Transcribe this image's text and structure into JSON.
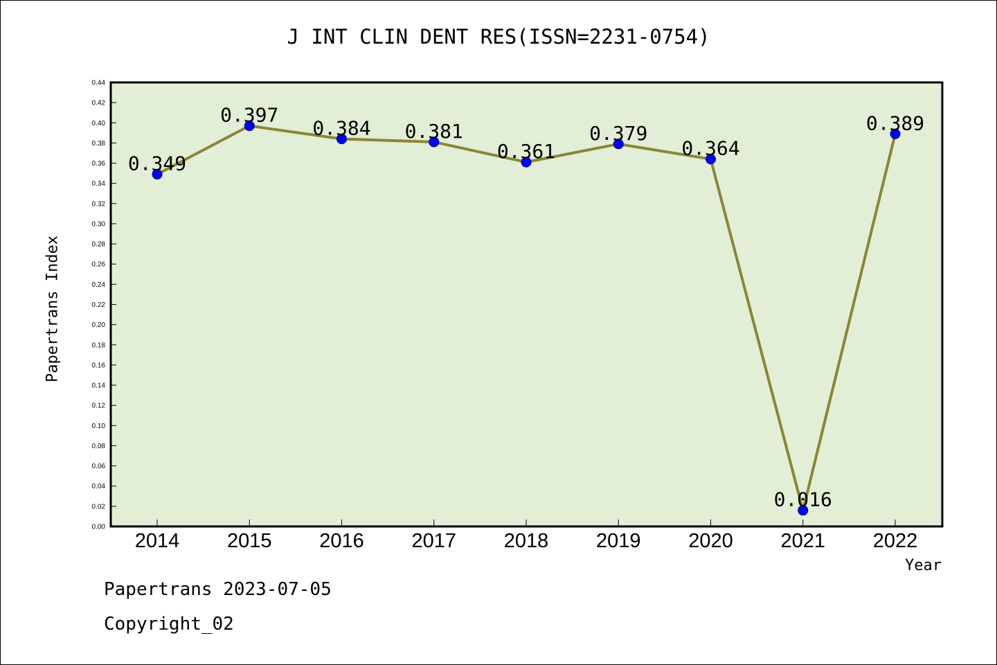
{
  "chart_data": {
    "type": "line",
    "title": "J INT CLIN DENT RES(ISSN=2231-0754)",
    "xlabel": "Year",
    "ylabel": "Papertrans Index",
    "ylim": [
      0,
      0.44
    ],
    "ytick_step": 0.02,
    "grid": false,
    "categories": [
      "2014",
      "2015",
      "2016",
      "2017",
      "2018",
      "2019",
      "2020",
      "2021",
      "2022"
    ],
    "series": [
      {
        "values": [
          0.349,
          0.397,
          0.384,
          0.381,
          0.361,
          0.379,
          0.364,
          0.016,
          0.389
        ],
        "data_labels": [
          "0.349",
          "0.397",
          "0.384",
          "0.381",
          "0.361",
          "0.379",
          "0.364",
          "0.016",
          "0.389"
        ],
        "line_color": "#8b8535",
        "marker_color": "#0000ff"
      }
    ],
    "plot_background": "#e2efd6"
  },
  "footer": {
    "line1": "Papertrans 2023-07-05",
    "line2": "Copyright_02"
  }
}
